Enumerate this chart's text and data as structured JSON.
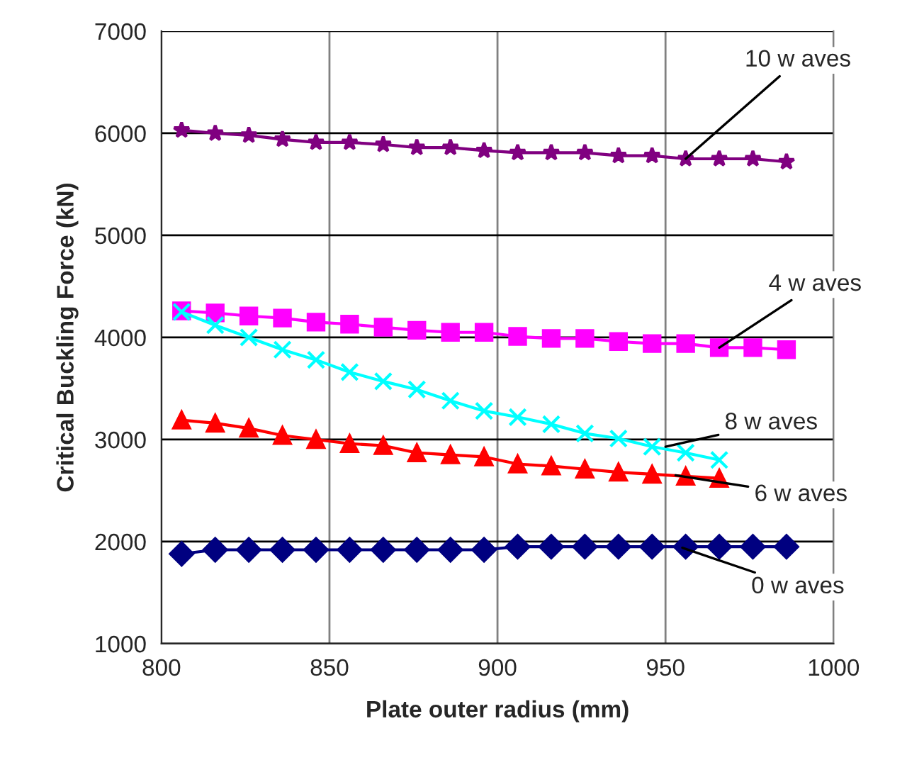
{
  "chart_data": {
    "type": "line",
    "xlabel": "Plate outer radius (mm)",
    "ylabel": "Critical Buckling Force (kN)",
    "x": [
      806,
      816,
      826,
      836,
      846,
      856,
      866,
      876,
      886,
      896,
      906,
      916,
      926,
      936,
      946,
      956,
      966,
      976,
      986
    ],
    "series": [
      {
        "color": "#800080",
        "marker": "star",
        "values": [
          6030,
          6000,
          5980,
          5940,
          5910,
          5910,
          5890,
          5860,
          5860,
          5830,
          5810,
          5810,
          5810,
          5780,
          5780,
          5750,
          5750,
          5750,
          5720
        ]
      },
      {
        "color": "#ff00ff",
        "marker": "square",
        "values": [
          4260,
          4240,
          4210,
          4190,
          4150,
          4130,
          4100,
          4070,
          4050,
          4050,
          4010,
          3990,
          3990,
          3960,
          3940,
          3940,
          3900,
          3900,
          3880
        ]
      },
      {
        "color": "#00ffff",
        "marker": "cross",
        "values": [
          4250,
          4120,
          4000,
          3880,
          3780,
          3660,
          3570,
          3490,
          3380,
          3280,
          3220,
          3150,
          3060,
          3010,
          2930,
          2870,
          2800,
          null,
          null
        ]
      },
      {
        "color": "#ff0000",
        "marker": "triangle",
        "values": [
          3190,
          3160,
          3110,
          3040,
          3000,
          2960,
          2940,
          2870,
          2850,
          2830,
          2760,
          2740,
          2710,
          2680,
          2660,
          2640,
          2620,
          null,
          null
        ]
      },
      {
        "color": "#000080",
        "marker": "diamond",
        "values": [
          1880,
          1920,
          1920,
          1920,
          1920,
          1920,
          1920,
          1920,
          1920,
          1920,
          1950,
          1950,
          1950,
          1950,
          1950,
          1950,
          1950,
          1950,
          1950
        ]
      }
    ],
    "xlim": [
      800,
      1000
    ],
    "xticks": [
      800,
      850,
      900,
      950,
      1000
    ],
    "ylim": [
      1000,
      7000
    ],
    "yticks": [
      1000,
      2000,
      3000,
      4000,
      5000,
      6000,
      7000
    ],
    "grid": true,
    "line_style": "solid",
    "annotations": [
      {
        "text": "10 w aves",
        "x": 956,
        "y": 5750
      },
      {
        "text": "4 w aves",
        "x": 966,
        "y": 3900
      },
      {
        "text": "8 w aves",
        "x": 950,
        "y": 2930
      },
      {
        "text": "6 w aves",
        "x": 953,
        "y": 2650
      },
      {
        "text": "0 w aves",
        "x": 955,
        "y": 1940
      }
    ]
  }
}
